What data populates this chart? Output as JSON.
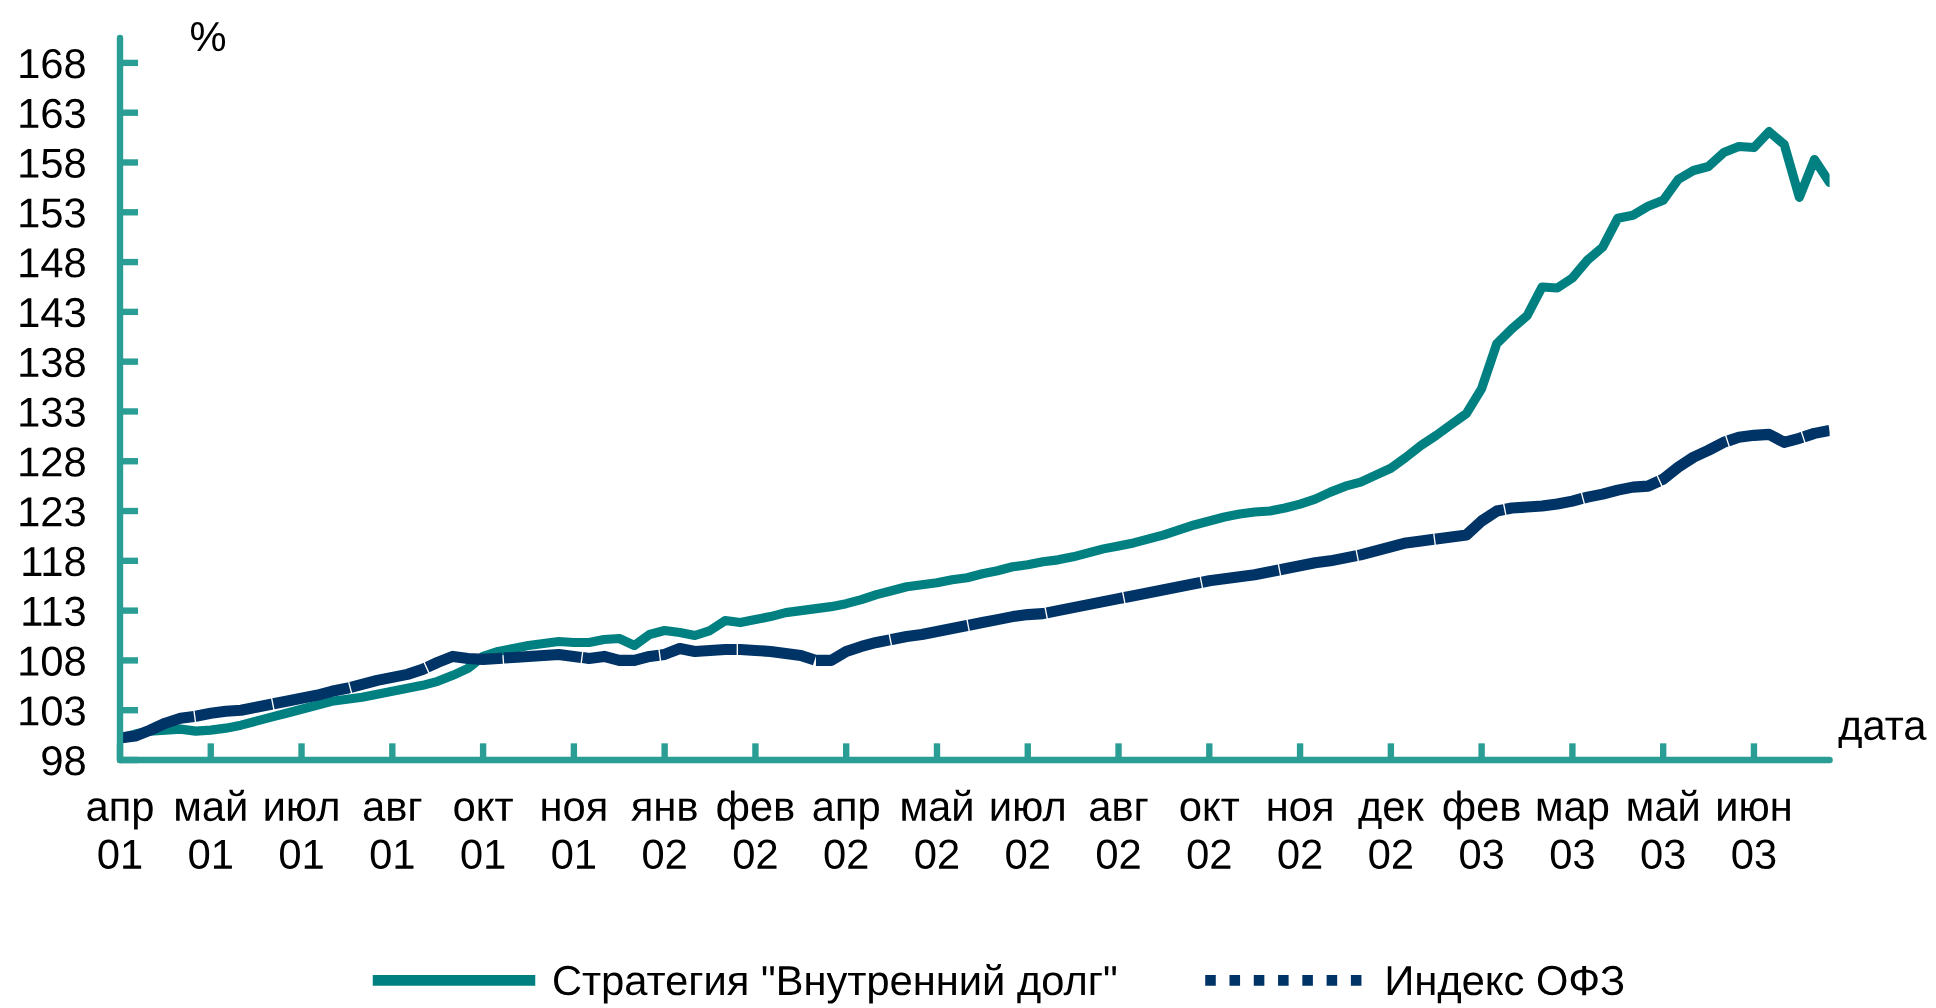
{
  "chart_data": {
    "type": "line",
    "ylabel": "%",
    "xlabel": "дата",
    "categories": [
      "апр\n01",
      null,
      null,
      null,
      null,
      null,
      "май\n01",
      null,
      null,
      null,
      null,
      null,
      "июл\n01",
      null,
      null,
      null,
      null,
      null,
      "авг\n01",
      null,
      null,
      null,
      null,
      null,
      "окт\n01",
      null,
      null,
      null,
      null,
      null,
      "ноя\n01",
      null,
      null,
      null,
      null,
      null,
      "янв\n02",
      null,
      null,
      null,
      null,
      null,
      "фев\n02",
      null,
      null,
      null,
      null,
      null,
      "апр\n02",
      null,
      null,
      null,
      null,
      null,
      "май\n02",
      null,
      null,
      null,
      null,
      null,
      "июл\n02",
      null,
      null,
      null,
      null,
      null,
      "авг\n02",
      null,
      null,
      null,
      null,
      null,
      "окт\n02",
      null,
      null,
      null,
      null,
      null,
      "ноя\n02",
      null,
      null,
      null,
      null,
      null,
      "дек\n02",
      null,
      null,
      null,
      null,
      null,
      "фев\n03",
      null,
      null,
      null,
      null,
      null,
      "мар\n03",
      null,
      null,
      null,
      null,
      null,
      "май\n03",
      null,
      null,
      null,
      null,
      null,
      "июн\n03",
      null,
      null,
      null,
      null,
      null
    ],
    "series": [
      {
        "name": "Стратегия \"Внутренний долг\"",
        "color": "#008080",
        "line_style": "solid",
        "values": [
          100.2,
          100.6,
          100.9,
          101.0,
          101.1,
          100.9,
          101.0,
          101.2,
          101.5,
          101.9,
          102.3,
          102.7,
          103.1,
          103.5,
          103.9,
          104.1,
          104.3,
          104.6,
          104.9,
          105.2,
          105.5,
          105.9,
          106.5,
          107.2,
          108.4,
          108.9,
          109.2,
          109.5,
          109.7,
          109.9,
          109.8,
          109.8,
          110.1,
          110.2,
          109.5,
          110.6,
          111.0,
          110.8,
          110.5,
          111.0,
          112.0,
          111.8,
          112.1,
          112.4,
          112.8,
          113.0,
          113.2,
          113.4,
          113.7,
          114.1,
          114.6,
          115.0,
          115.4,
          115.6,
          115.8,
          116.1,
          116.3,
          116.7,
          117.0,
          117.4,
          117.6,
          117.9,
          118.1,
          118.4,
          118.8,
          119.2,
          119.5,
          119.8,
          120.2,
          120.6,
          121.1,
          121.6,
          122.0,
          122.4,
          122.7,
          122.9,
          123.0,
          123.3,
          123.7,
          124.2,
          124.9,
          125.5,
          125.9,
          126.6,
          127.3,
          128.4,
          129.6,
          130.6,
          131.7,
          132.8,
          135.3,
          139.8,
          141.3,
          142.6,
          145.5,
          145.4,
          146.4,
          148.2,
          149.5,
          152.4,
          152.7,
          153.6,
          154.2,
          156.3,
          157.2,
          157.6,
          159.0,
          159.6,
          159.5,
          161.1,
          159.8,
          154.5,
          158.3,
          156.0
        ]
      },
      {
        "name": "Индекс ОФЗ",
        "color": "#003366",
        "line_style": "dashed",
        "values": [
          100.2,
          100.4,
          101.0,
          101.7,
          102.2,
          102.4,
          102.7,
          102.9,
          103.0,
          103.3,
          103.6,
          103.9,
          104.2,
          104.5,
          104.9,
          105.2,
          105.6,
          106.0,
          106.3,
          106.6,
          107.1,
          107.8,
          108.4,
          108.2,
          108.1,
          108.2,
          108.3,
          108.4,
          108.5,
          108.6,
          108.4,
          108.2,
          108.4,
          108.0,
          108.0,
          108.4,
          108.6,
          109.2,
          108.9,
          109.0,
          109.1,
          109.1,
          109.0,
          108.9,
          108.7,
          108.5,
          108.0,
          108.0,
          108.9,
          109.4,
          109.8,
          110.1,
          110.4,
          110.6,
          110.9,
          111.2,
          111.5,
          111.8,
          112.1,
          112.4,
          112.6,
          112.7,
          113.0,
          113.3,
          113.6,
          113.9,
          114.2,
          114.5,
          114.8,
          115.1,
          115.4,
          115.7,
          116.0,
          116.2,
          116.4,
          116.6,
          116.9,
          117.2,
          117.5,
          117.8,
          118.0,
          118.3,
          118.6,
          119.0,
          119.4,
          119.8,
          120.0,
          120.2,
          120.4,
          120.6,
          122.0,
          123.0,
          123.3,
          123.4,
          123.5,
          123.7,
          124.0,
          124.4,
          124.7,
          125.1,
          125.4,
          125.5,
          126.2,
          127.4,
          128.4,
          129.1,
          129.9,
          130.4,
          130.6,
          130.7,
          129.9,
          130.3,
          130.8,
          131.1
        ]
      }
    ],
    "ylim": [
      98,
      170.5
    ],
    "yticks": [
      98,
      103,
      108,
      113,
      118,
      123,
      128,
      133,
      138,
      143,
      148,
      153,
      158,
      163,
      168
    ],
    "legend": "bottom"
  }
}
